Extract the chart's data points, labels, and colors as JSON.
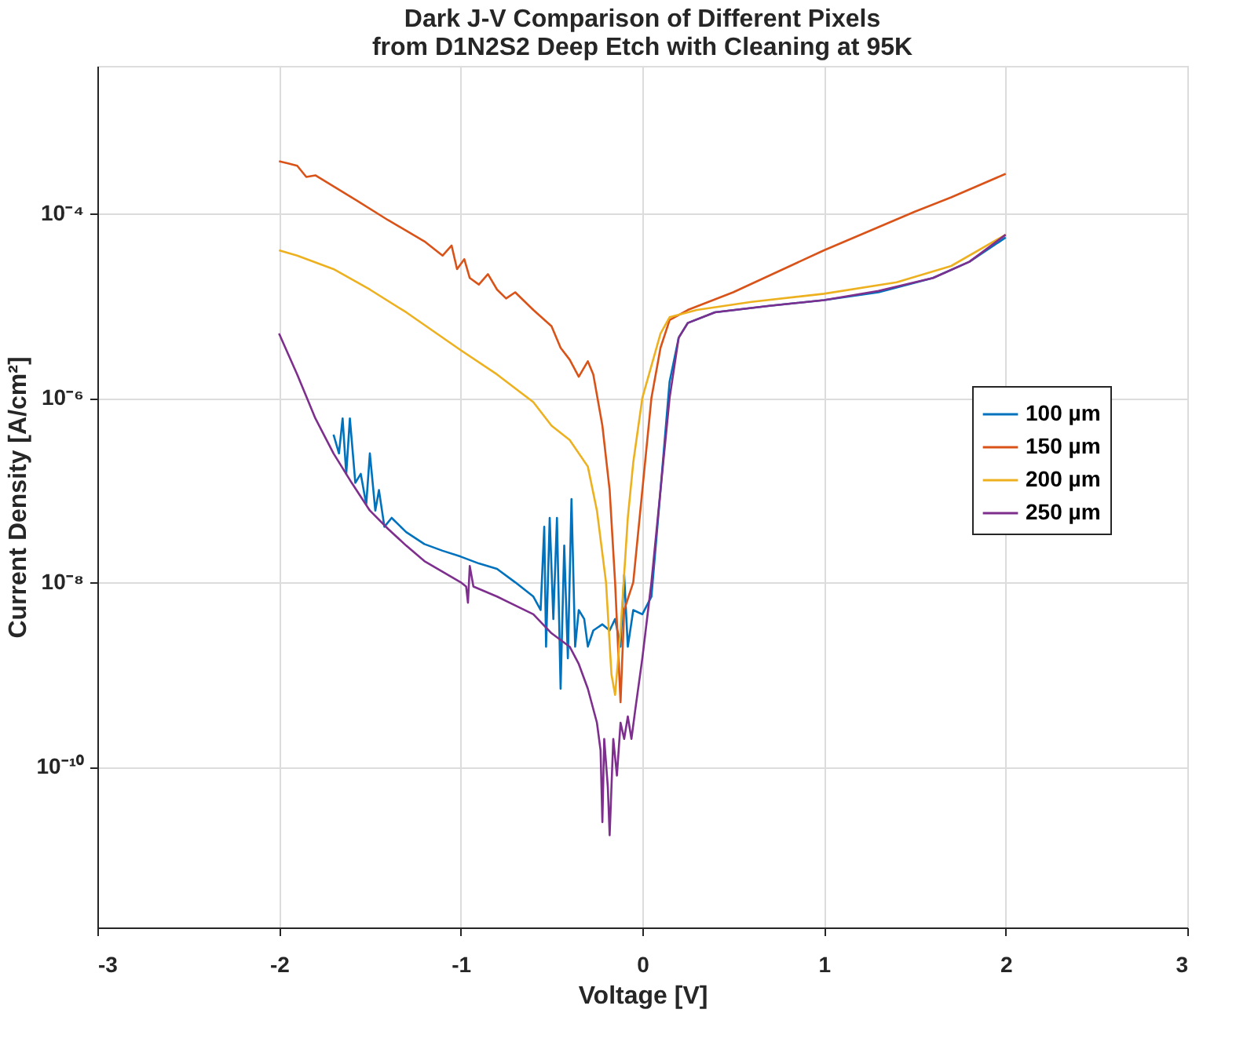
{
  "chart_data": {
    "type": "line",
    "title": "Dark J-V Comparison of Different Pixels\nfrom D1N2S2 Deep Etch with Cleaning at 95K",
    "xlabel": "Voltage [V]",
    "ylabel": "Current Density [A/cm²]",
    "xlim": [
      -3,
      3
    ],
    "xticks": [
      -3,
      -2,
      -1,
      0,
      1,
      2,
      3
    ],
    "ylim": [
      1.8e-12,
      0.004
    ],
    "yticks": [
      {
        "value": 1e-10,
        "label": "10⁻¹⁰"
      },
      {
        "value": 1e-08,
        "label": "10⁻⁸"
      },
      {
        "value": 1e-06,
        "label": "10⁻⁶"
      },
      {
        "value": 0.0001,
        "label": "10⁻⁴"
      }
    ],
    "log": "y",
    "grid": true,
    "legend": "right",
    "line_style": "solid",
    "marker": "none",
    "series": [
      {
        "name": "100 µm",
        "color": "#0072bd",
        "x": [
          -1.7,
          -1.67,
          -1.65,
          -1.63,
          -1.61,
          -1.58,
          -1.55,
          -1.52,
          -1.5,
          -1.47,
          -1.45,
          -1.42,
          -1.38,
          -1.3,
          -1.2,
          -1.1,
          -1.0,
          -0.9,
          -0.8,
          -0.7,
          -0.6,
          -0.56,
          -0.54,
          -0.53,
          -0.51,
          -0.49,
          -0.47,
          -0.45,
          -0.43,
          -0.41,
          -0.39,
          -0.37,
          -0.35,
          -0.32,
          -0.3,
          -0.27,
          -0.22,
          -0.18,
          -0.15,
          -0.12,
          -0.1,
          -0.08,
          -0.05,
          0.0,
          0.05,
          0.1,
          0.15,
          0.2,
          0.25,
          0.4,
          0.7,
          1.0,
          1.3,
          1.6,
          1.8,
          2.0
        ],
        "values": [
          4e-07,
          2.5e-07,
          6e-07,
          1.5e-07,
          6e-07,
          1.2e-07,
          1.5e-07,
          7e-08,
          2.5e-07,
          6e-08,
          1e-07,
          4e-08,
          5e-08,
          3.5e-08,
          2.6e-08,
          2.2e-08,
          1.9e-08,
          1.6e-08,
          1.4e-08,
          1e-08,
          7e-09,
          5e-09,
          4e-08,
          2e-09,
          5e-08,
          4e-09,
          5e-08,
          7e-10,
          2.5e-08,
          1.5e-09,
          8e-08,
          2e-09,
          5e-09,
          4e-09,
          2e-09,
          3e-09,
          3.5e-09,
          3e-09,
          4e-09,
          2e-09,
          1.2e-08,
          2e-09,
          5e-09,
          4.5e-09,
          7e-09,
          1e-07,
          1.5e-06,
          4.5e-06,
          6.5e-06,
          8.5e-06,
          1e-05,
          1.15e-05,
          1.4e-05,
          2e-05,
          3e-05,
          5.5e-05
        ]
      },
      {
        "name": "150 µm",
        "color": "#d95319",
        "x": [
          -2,
          -1.95,
          -1.9,
          -1.85,
          -1.8,
          -1.6,
          -1.4,
          -1.2,
          -1.1,
          -1.05,
          -1.02,
          -0.98,
          -0.95,
          -0.9,
          -0.85,
          -0.8,
          -0.75,
          -0.7,
          -0.6,
          -0.5,
          -0.45,
          -0.4,
          -0.35,
          -0.3,
          -0.27,
          -0.22,
          -0.18,
          -0.15,
          -0.12,
          -0.1,
          -0.05,
          0.0,
          0.05,
          0.1,
          0.15,
          0.25,
          0.5,
          1.0,
          1.5,
          1.7,
          2.0
        ],
        "values": [
          0.00037,
          0.00035,
          0.00033,
          0.00025,
          0.00026,
          0.00015,
          8.5e-05,
          5e-05,
          3.5e-05,
          4.5e-05,
          2.5e-05,
          3.2e-05,
          2e-05,
          1.7e-05,
          2.2e-05,
          1.5e-05,
          1.2e-05,
          1.4e-05,
          9e-06,
          6e-06,
          3.5e-06,
          2.6e-06,
          1.7e-06,
          2.5e-06,
          1.8e-06,
          5e-07,
          1e-07,
          1e-08,
          5e-10,
          5e-09,
          1e-08,
          1e-07,
          1e-06,
          3.5e-06,
          7e-06,
          9e-06,
          1.4e-05,
          4e-05,
          0.000105,
          0.00015,
          0.00027
        ]
      },
      {
        "name": "200 µm",
        "color": "#edb120",
        "x": [
          -2,
          -1.9,
          -1.7,
          -1.5,
          -1.3,
          -1.0,
          -0.8,
          -0.6,
          -0.5,
          -0.4,
          -0.3,
          -0.25,
          -0.2,
          -0.17,
          -0.15,
          -0.12,
          -0.08,
          -0.05,
          0.0,
          0.1,
          0.15,
          0.3,
          0.6,
          1.0,
          1.4,
          1.7,
          2.0
        ],
        "values": [
          4e-05,
          3.5e-05,
          2.5e-05,
          1.5e-05,
          8.5e-06,
          3.3e-06,
          1.8e-06,
          9e-07,
          5e-07,
          3.5e-07,
          1.8e-07,
          6e-08,
          1e-08,
          1e-09,
          6e-10,
          3e-09,
          5e-08,
          2e-07,
          1e-06,
          5e-06,
          7.5e-06,
          9e-06,
          1.1e-05,
          1.35e-05,
          1.8e-05,
          2.7e-05,
          5.9e-05
        ]
      },
      {
        "name": "250 µm",
        "color": "#7e2f8e",
        "x": [
          -2,
          -1.9,
          -1.8,
          -1.7,
          -1.6,
          -1.5,
          -1.4,
          -1.3,
          -1.2,
          -1.1,
          -1.0,
          -0.97,
          -0.96,
          -0.95,
          -0.93,
          -0.8,
          -0.6,
          -0.5,
          -0.4,
          -0.35,
          -0.3,
          -0.25,
          -0.23,
          -0.22,
          -0.21,
          -0.19,
          -0.18,
          -0.16,
          -0.14,
          -0.12,
          -0.1,
          -0.08,
          -0.06,
          -0.04,
          0.0,
          0.05,
          0.1,
          0.15,
          0.2,
          0.25,
          0.4,
          0.7,
          1.0,
          1.3,
          1.6,
          1.8,
          2.0
        ],
        "values": [
          5e-06,
          1.8e-06,
          6e-07,
          2.5e-07,
          1.2e-07,
          6e-08,
          3.8e-08,
          2.5e-08,
          1.7e-08,
          1.3e-08,
          1e-08,
          9e-09,
          6e-09,
          1.5e-08,
          9e-09,
          7e-09,
          4.5e-09,
          2.8e-09,
          2e-09,
          1.3e-09,
          7e-10,
          3e-10,
          1.5e-10,
          2.5e-11,
          2e-10,
          6e-11,
          1.8e-11,
          2e-10,
          8e-11,
          3e-10,
          2e-10,
          3.5e-10,
          2e-10,
          4e-10,
          1.5e-09,
          1e-08,
          1e-07,
          1e-06,
          4.5e-06,
          6.5e-06,
          8.5e-06,
          1e-05,
          1.15e-05,
          1.45e-05,
          2e-05,
          3e-05,
          5.9e-05
        ]
      }
    ]
  }
}
